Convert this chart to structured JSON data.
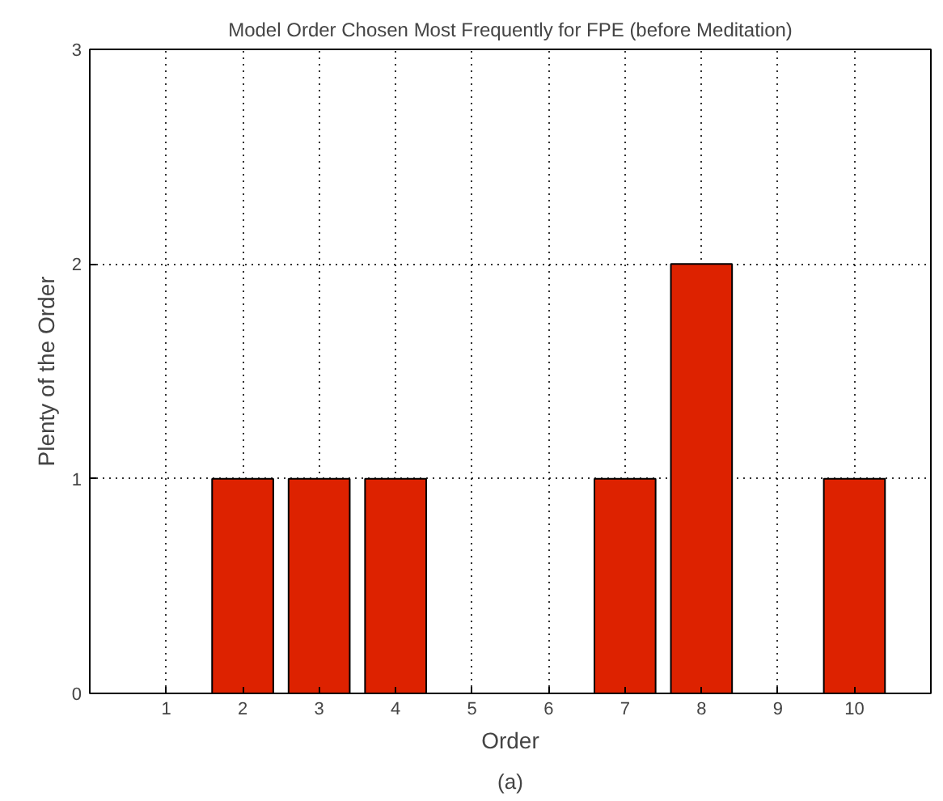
{
  "chart_data": {
    "type": "bar",
    "title": "Model Order Chosen Most Frequently for FPE (before Meditation)",
    "xlabel": "Order",
    "ylabel": "Plenty of the Order",
    "x": [
      1,
      2,
      3,
      4,
      5,
      6,
      7,
      8,
      9,
      10
    ],
    "values": [
      0,
      1,
      1,
      1,
      0,
      0,
      1,
      2,
      0,
      1
    ],
    "color": "#dd2200",
    "xlim": [
      0,
      11
    ],
    "xticks": [
      1,
      2,
      3,
      4,
      5,
      6,
      7,
      8,
      9,
      10
    ],
    "ylim": [
      0,
      3
    ],
    "yticks": [
      0,
      1,
      2,
      3
    ],
    "grid": true,
    "annotations": [
      "(a)"
    ]
  }
}
